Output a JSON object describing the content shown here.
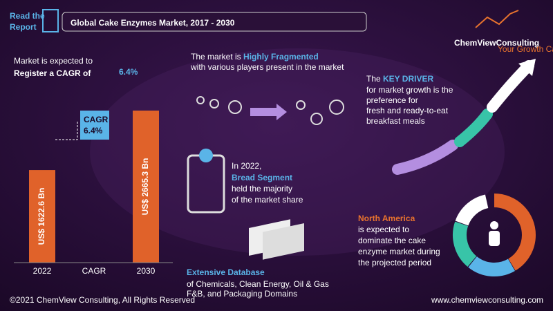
{
  "header": {
    "read_report": [
      "Read the",
      "Report"
    ],
    "title": "Global Cake Enzymes Market, 2017 - 2030",
    "brand": "ChemViewConsulting",
    "tagline": "Your Growth Catalyst"
  },
  "cagr_intro": {
    "lines": [
      "Market is expected to",
      "Register a CAGR of"
    ],
    "value": "6.4%"
  },
  "market_chart": {
    "categories": [
      "2022",
      "CAGR",
      "2030"
    ],
    "values": [
      1622.6,
      null,
      2665.3
    ],
    "value_labels": [
      "US$ 1622.6 Bn",
      null,
      "US$ 2665.3 Bn"
    ],
    "callout": [
      "CAGR",
      "6.4%"
    ],
    "color": "#e0622a"
  },
  "fragmented": {
    "lead": "The market is ",
    "highlight": "Highly Fragmented",
    "rest": "with various players present in the market"
  },
  "driver": {
    "lead": "The ",
    "highlight": "KEY DRIVER",
    "lines": [
      "for market growth is the",
      "preference for",
      "fresh and ready-to-eat",
      "breakfast meals"
    ]
  },
  "segment": {
    "lead": "In 2022,",
    "highlight": "Bread Segment",
    "lines": [
      "held the majority",
      "of the market share"
    ]
  },
  "region": {
    "highlight": "North America",
    "lines": [
      "is expected to",
      "dominate the cake",
      "enzyme market during",
      "the projected period"
    ]
  },
  "database": {
    "title": "Extensive Database",
    "lines": [
      "of Chemicals, Clean Energy, Oil & Gas",
      "F&B, and Packaging Domains"
    ]
  },
  "footer": {
    "copyright": "©2021 ChemView Consulting,  All Rights Reserved",
    "website": "www.chemviewconsulting.com"
  }
}
